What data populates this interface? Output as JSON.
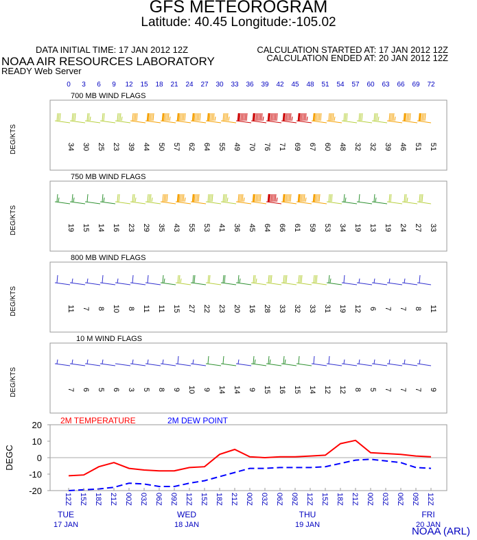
{
  "header": {
    "title": "GFS METEOROGRAM",
    "subtitle": "Latitude: 40.45 Longitude:-105.02",
    "init_time": "DATA INITIAL TIME: 17 JAN 2012 12Z",
    "calc_started": "CALCULATION STARTED AT: 17 JAN 2012 12Z",
    "calc_ended": "CALCULATION ENDED AT: 20 JAN 2012 12Z",
    "lab": "NOAA AIR RESOURCES LABORATORY",
    "server": "READY Web Server",
    "credit": "NOAA (ARL)"
  },
  "forecast_hours": [
    0,
    3,
    6,
    9,
    12,
    15,
    18,
    21,
    24,
    27,
    30,
    33,
    36,
    39,
    42,
    45,
    48,
    51,
    54,
    57,
    60,
    63,
    66,
    69,
    72
  ],
  "colors": {
    "hour_labels": "#0000c0",
    "strong": "#cc0000",
    "moderate": "#f5a000",
    "light": "#b8d040",
    "gentle": "#2e9030",
    "calm": "#3030d0",
    "temp_line": "#ff0000",
    "dew_line": "#0000ff"
  },
  "chart_data": [
    {
      "type": "wind_barbs",
      "title": "700 MB  WIND FLAGS",
      "ylabel": "DEG/KTS",
      "x": [
        0,
        3,
        6,
        9,
        12,
        15,
        18,
        21,
        24,
        27,
        30,
        33,
        36,
        39,
        42,
        45,
        48,
        51,
        54,
        57,
        60,
        63,
        66,
        69,
        72
      ],
      "speeds": [
        34,
        30,
        25,
        23,
        39,
        44,
        50,
        57,
        62,
        64,
        55,
        49,
        70,
        76,
        71,
        69,
        67,
        60,
        48,
        32,
        32,
        39,
        46,
        51,
        51
      ]
    },
    {
      "type": "wind_barbs",
      "title": "750 MB  WIND FLAGS",
      "ylabel": "DEG/KTS",
      "x": [
        0,
        3,
        6,
        9,
        12,
        15,
        18,
        21,
        24,
        27,
        30,
        33,
        36,
        39,
        42,
        45,
        48,
        51,
        54,
        57,
        60,
        63,
        66,
        69,
        72
      ],
      "speeds": [
        19,
        15,
        14,
        16,
        23,
        29,
        35,
        43,
        55,
        53,
        41,
        36,
        45,
        64,
        66,
        61,
        59,
        53,
        34,
        19,
        13,
        19,
        24,
        27,
        33
      ]
    },
    {
      "type": "wind_barbs",
      "title": "800 MB  WIND FLAGS",
      "ylabel": "DEG/KTS",
      "x": [
        0,
        3,
        6,
        9,
        12,
        15,
        18,
        21,
        24,
        27,
        30,
        33,
        36,
        39,
        42,
        45,
        48,
        51,
        54,
        57,
        60,
        63,
        66,
        69,
        72
      ],
      "speeds": [
        11,
        7,
        8,
        10,
        8,
        11,
        11,
        15,
        27,
        22,
        23,
        20,
        16,
        28,
        33,
        32,
        33,
        31,
        19,
        12,
        6,
        7,
        7,
        8,
        11
      ]
    },
    {
      "type": "wind_barbs",
      "title": "10 M  WIND FLAGS",
      "ylabel": "DEG/KTS",
      "x": [
        0,
        3,
        6,
        9,
        12,
        15,
        18,
        21,
        24,
        27,
        30,
        33,
        36,
        39,
        42,
        45,
        48,
        51,
        54,
        57,
        60,
        63,
        66,
        69,
        72
      ],
      "speeds": [
        7,
        6,
        5,
        6,
        3,
        5,
        8,
        9,
        10,
        9,
        14,
        14,
        9,
        15,
        16,
        15,
        14,
        12,
        12,
        8,
        5,
        7,
        7,
        7,
        9
      ]
    },
    {
      "type": "line",
      "ylabel": "DEGC",
      "ylim": [
        -20,
        20
      ],
      "yticks": [
        "20",
        "10",
        "0",
        "-10",
        "-20"
      ],
      "x": [
        0,
        3,
        6,
        9,
        12,
        15,
        18,
        21,
        24,
        27,
        30,
        33,
        36,
        39,
        42,
        45,
        48,
        51,
        54,
        57,
        60,
        63,
        66,
        69,
        72
      ],
      "time_labels": [
        "12Z",
        "15Z",
        "18Z",
        "21Z",
        "00Z",
        "03Z",
        "06Z",
        "09Z",
        "12Z",
        "15Z",
        "18Z",
        "21Z",
        "00Z",
        "03Z",
        "06Z",
        "09Z",
        "12Z",
        "15Z",
        "18Z",
        "21Z",
        "00Z",
        "03Z",
        "06Z",
        "09Z",
        "12Z"
      ],
      "day_labels": [
        {
          "day": "TUE",
          "date": "17 JAN"
        },
        {
          "day": "WED",
          "date": "18 JAN"
        },
        {
          "day": "THU",
          "date": "19 JAN"
        },
        {
          "day": "FRI",
          "date": "20 JAN"
        }
      ],
      "series": [
        {
          "name": "2M TEMPERATURE",
          "values": [
            -11,
            -10.5,
            -5.5,
            -3,
            -6.5,
            -7.5,
            -8,
            -8,
            -6,
            -5.5,
            2,
            5,
            0.5,
            0,
            0.5,
            0.5,
            1,
            1.5,
            8.5,
            10.5,
            3,
            2.5,
            2,
            1,
            0.5
          ]
        },
        {
          "name": "2M   DEW POINT",
          "values": [
            -20,
            -19.5,
            -19,
            -18,
            -15.5,
            -16,
            -17.5,
            -17.5,
            -15.5,
            -14,
            -11.5,
            -9,
            -6.5,
            -6.5,
            -6,
            -6,
            -6,
            -5.5,
            -3.5,
            -1.5,
            -1,
            -2,
            -3,
            -6,
            -6.5
          ]
        }
      ]
    }
  ]
}
